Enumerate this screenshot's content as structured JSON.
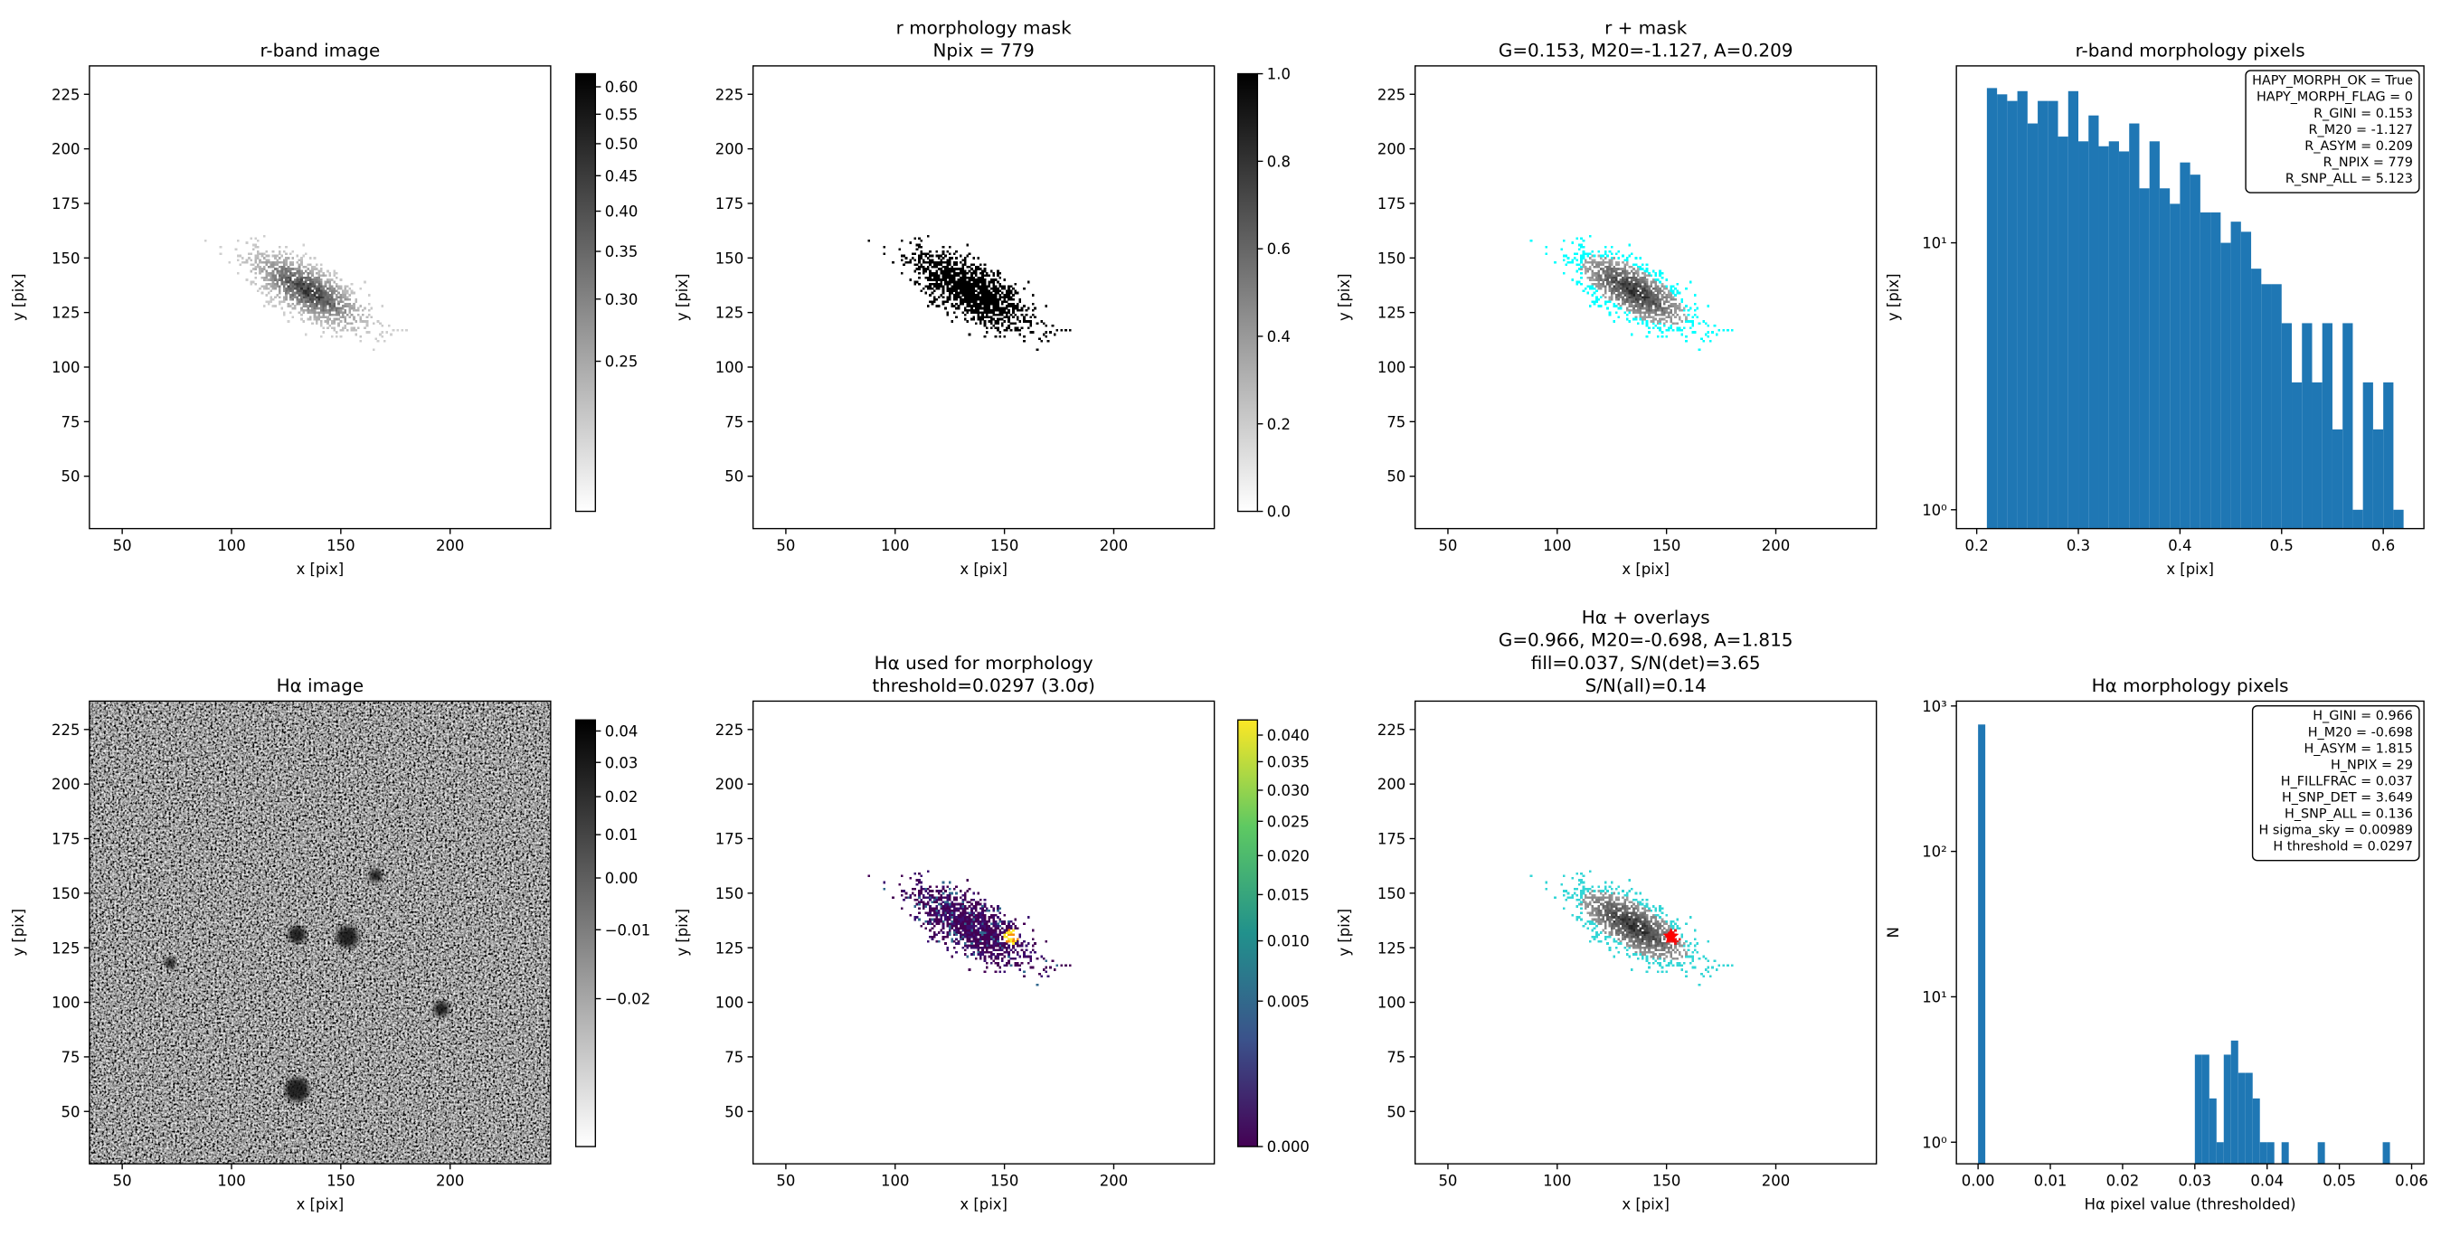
{
  "chart_data": [
    {
      "type": "image",
      "title": [
        "r-band image"
      ],
      "xlabel": "x [pix]",
      "ylabel": "y [pix]",
      "xlim": [
        35,
        246
      ],
      "ylim": [
        26,
        238
      ],
      "xticks": [
        50,
        100,
        150,
        200
      ],
      "yticks": [
        50,
        75,
        100,
        125,
        150,
        175,
        200,
        225
      ],
      "colorbar": {
        "cmap": "gray_r",
        "stretch": "sqrt",
        "clim": [
          0.2,
          0.625
        ],
        "ticks": [
          0.25,
          {
            "value": 0.3,
            "label": "0.30"
          },
          0.35,
          {
            "value": 0.4,
            "label": "0.40"
          },
          0.45,
          {
            "value": 0.5,
            "label": "0.50"
          },
          0.55,
          {
            "value": 0.6,
            "label": "0.60"
          }
        ]
      }
    },
    {
      "type": "image",
      "title": [
        "r morphology mask",
        "Npix = 779"
      ],
      "xlabel": "x [pix]",
      "ylabel": "y [pix]",
      "xlim": [
        35,
        246
      ],
      "ylim": [
        26,
        238
      ],
      "xticks": [
        50,
        100,
        150,
        200
      ],
      "yticks": [
        50,
        75,
        100,
        125,
        150,
        175,
        200,
        225
      ],
      "colorbar": {
        "cmap": "gray_r",
        "stretch": "linear",
        "clim": [
          0,
          1
        ],
        "ticks": [
          {
            "value": 0,
            "label": "0.0"
          },
          0.2,
          0.4,
          0.6,
          0.8,
          {
            "value": 1,
            "label": "1.0"
          }
        ]
      }
    },
    {
      "type": "image",
      "title": [
        "r + mask",
        "G=0.153, M20=-1.127, A=0.209"
      ],
      "xlabel": "x [pix]",
      "ylabel": "y [pix]",
      "xlim": [
        35,
        246
      ],
      "ylim": [
        26,
        238
      ],
      "xticks": [
        50,
        100,
        150,
        200
      ],
      "yticks": [
        50,
        75,
        100,
        125,
        150,
        175,
        200,
        225
      ]
    },
    {
      "type": "histogram",
      "title": [
        "r-band morphology pixels"
      ],
      "xlabel": "x [pix]",
      "ylabel": "y [pix]",
      "color": "#1f77b4",
      "log_y": true,
      "xlim": [
        0.18,
        0.64
      ],
      "ylim": [
        0.85,
        46
      ],
      "xticks": [
        0.2,
        0.3,
        0.4,
        0.5,
        0.6
      ],
      "yticks": [
        {
          "value": 1,
          "label": "10⁰"
        },
        {
          "value": 10,
          "label": "10¹"
        }
      ],
      "bins": [
        0.21,
        0.22,
        0.23,
        0.24,
        0.25,
        0.26,
        0.27,
        0.28,
        0.29,
        0.3,
        0.31,
        0.32,
        0.33,
        0.34,
        0.35,
        0.36,
        0.37,
        0.38,
        0.39,
        0.4,
        0.41,
        0.42,
        0.43,
        0.44,
        0.45,
        0.46,
        0.47,
        0.48,
        0.49,
        0.5,
        0.51,
        0.52,
        0.53,
        0.54,
        0.55,
        0.56,
        0.57,
        0.58,
        0.59,
        0.6,
        0.61,
        0.62
      ],
      "values": [
        38,
        36,
        34,
        37,
        28,
        34,
        34,
        25,
        37,
        24,
        30,
        23,
        24,
        22,
        28,
        16,
        24,
        16,
        14,
        20,
        18,
        13,
        13,
        10,
        12,
        11,
        8,
        7,
        7,
        5,
        3,
        5,
        3,
        5,
        2,
        5,
        1,
        3,
        2,
        3,
        1
      ],
      "annotation_lines": [
        "HAPY_MORPH_OK = True",
        "HAPY_MORPH_FLAG = 0",
        "R_GINI = 0.153",
        "R_M20 = -1.127",
        "R_ASYM = 0.209",
        "R_NPIX = 779",
        "R_SNP_ALL = 5.123"
      ]
    },
    {
      "type": "image",
      "title": [
        "Hα image"
      ],
      "xlabel": "x [pix]",
      "ylabel": "y [pix]",
      "xlim": [
        35,
        246
      ],
      "ylim": [
        26,
        238
      ],
      "xticks": [
        50,
        100,
        150,
        200
      ],
      "yticks": [
        50,
        75,
        100,
        125,
        150,
        175,
        200,
        225
      ],
      "colorbar": {
        "cmap": "gray_r",
        "stretch": "sqrt",
        "clim": [
          -0.0287,
          0.0437
        ],
        "ticks": [
          {
            "value": -0.02,
            "label": "−0.02"
          },
          {
            "value": -0.01,
            "label": "−0.01"
          },
          {
            "value": 0,
            "label": "0.00"
          },
          0.01,
          0.02,
          0.03,
          0.04
        ]
      }
    },
    {
      "type": "image",
      "title": [
        "Hα used for morphology",
        "threshold=0.0297 (3.0σ)"
      ],
      "xlabel": "x [pix]",
      "ylabel": "y [pix]",
      "xlim": [
        35,
        246
      ],
      "ylim": [
        26,
        238
      ],
      "xticks": [
        50,
        100,
        150,
        200
      ],
      "yticks": [
        50,
        75,
        100,
        125,
        150,
        175,
        200,
        225
      ],
      "colorbar": {
        "cmap": "viridis",
        "stretch": "sqrt",
        "clim": [
          0,
          0.043
        ],
        "ticks": [
          {
            "value": 0,
            "label": "0.000"
          },
          0.005,
          {
            "value": 0.01,
            "label": "0.010"
          },
          0.015,
          {
            "value": 0.02,
            "label": "0.020"
          },
          0.025,
          {
            "value": 0.03,
            "label": "0.030"
          },
          0.035,
          {
            "value": 0.04,
            "label": "0.040"
          }
        ]
      }
    },
    {
      "type": "image",
      "title": [
        "Hα + overlays",
        "G=0.966, M20=-0.698, A=1.815",
        "fill=0.037, S/N(det)=3.65",
        "S/N(all)=0.14"
      ],
      "xlabel": "x [pix]",
      "ylabel": "y [pix]",
      "xlim": [
        35,
        246
      ],
      "ylim": [
        26,
        238
      ],
      "xticks": [
        50,
        100,
        150,
        200
      ],
      "yticks": [
        50,
        75,
        100,
        125,
        150,
        175,
        200,
        225
      ]
    },
    {
      "type": "histogram",
      "title": [
        "Hα morphology pixels"
      ],
      "xlabel": "Hα pixel value (thresholded)",
      "ylabel": "N",
      "color": "#1f77b4",
      "log_y": true,
      "xlim": [
        -0.003,
        0.0617
      ],
      "ylim": [
        0.71,
        1080
      ],
      "xticks": [
        {
          "value": 0,
          "label": "0.00"
        },
        0.01,
        0.02,
        0.03,
        0.04,
        0.05,
        0.06
      ],
      "yticks": [
        {
          "value": 1,
          "label": "10⁰"
        },
        {
          "value": 10,
          "label": "10¹"
        },
        {
          "value": 100,
          "label": "10²"
        },
        {
          "value": 1000,
          "label": "10³"
        }
      ],
      "bins": [
        0,
        0.001,
        0.002,
        0.003,
        0.004,
        0.005,
        0.006,
        0.007,
        0.008,
        0.009,
        0.01,
        0.011,
        0.012,
        0.013,
        0.014,
        0.015,
        0.016,
        0.017,
        0.018,
        0.019,
        0.02,
        0.021,
        0.022,
        0.023,
        0.024,
        0.025,
        0.026,
        0.027,
        0.028,
        0.029,
        0.03,
        0.031,
        0.032,
        0.033,
        0.034,
        0.035,
        0.036,
        0.037,
        0.038,
        0.039,
        0.04,
        0.041,
        0.042,
        0.043,
        0.044,
        0.045,
        0.046,
        0.047,
        0.048,
        0.049,
        0.05,
        0.051,
        0.052,
        0.053,
        0.054,
        0.055,
        0.056,
        0.057,
        0.058
      ],
      "values": [
        746,
        0,
        0,
        0,
        0,
        0,
        0,
        0,
        0,
        0,
        0,
        0,
        0,
        0,
        0,
        0,
        0,
        0,
        0,
        0,
        0,
        0,
        0,
        0,
        0,
        0,
        0,
        0,
        0,
        0,
        4,
        4,
        2,
        1,
        4,
        5,
        3,
        3,
        2,
        1,
        1,
        0,
        1,
        0,
        0,
        0,
        0,
        1,
        0,
        0,
        0,
        0,
        0,
        0,
        0,
        0,
        1,
        0
      ],
      "annotation_lines": [
        "H_GINI = 0.966",
        "H_M20 = -0.698",
        "H_ASYM = 1.815",
        "H_NPIX = 29",
        "H_FILLFRAC = 0.037",
        "H_SNP_DET = 3.649",
        "H_SNP_ALL = 0.136",
        "H sigma_sky = 0.00989",
        "H threshold = 0.0297"
      ]
    }
  ]
}
